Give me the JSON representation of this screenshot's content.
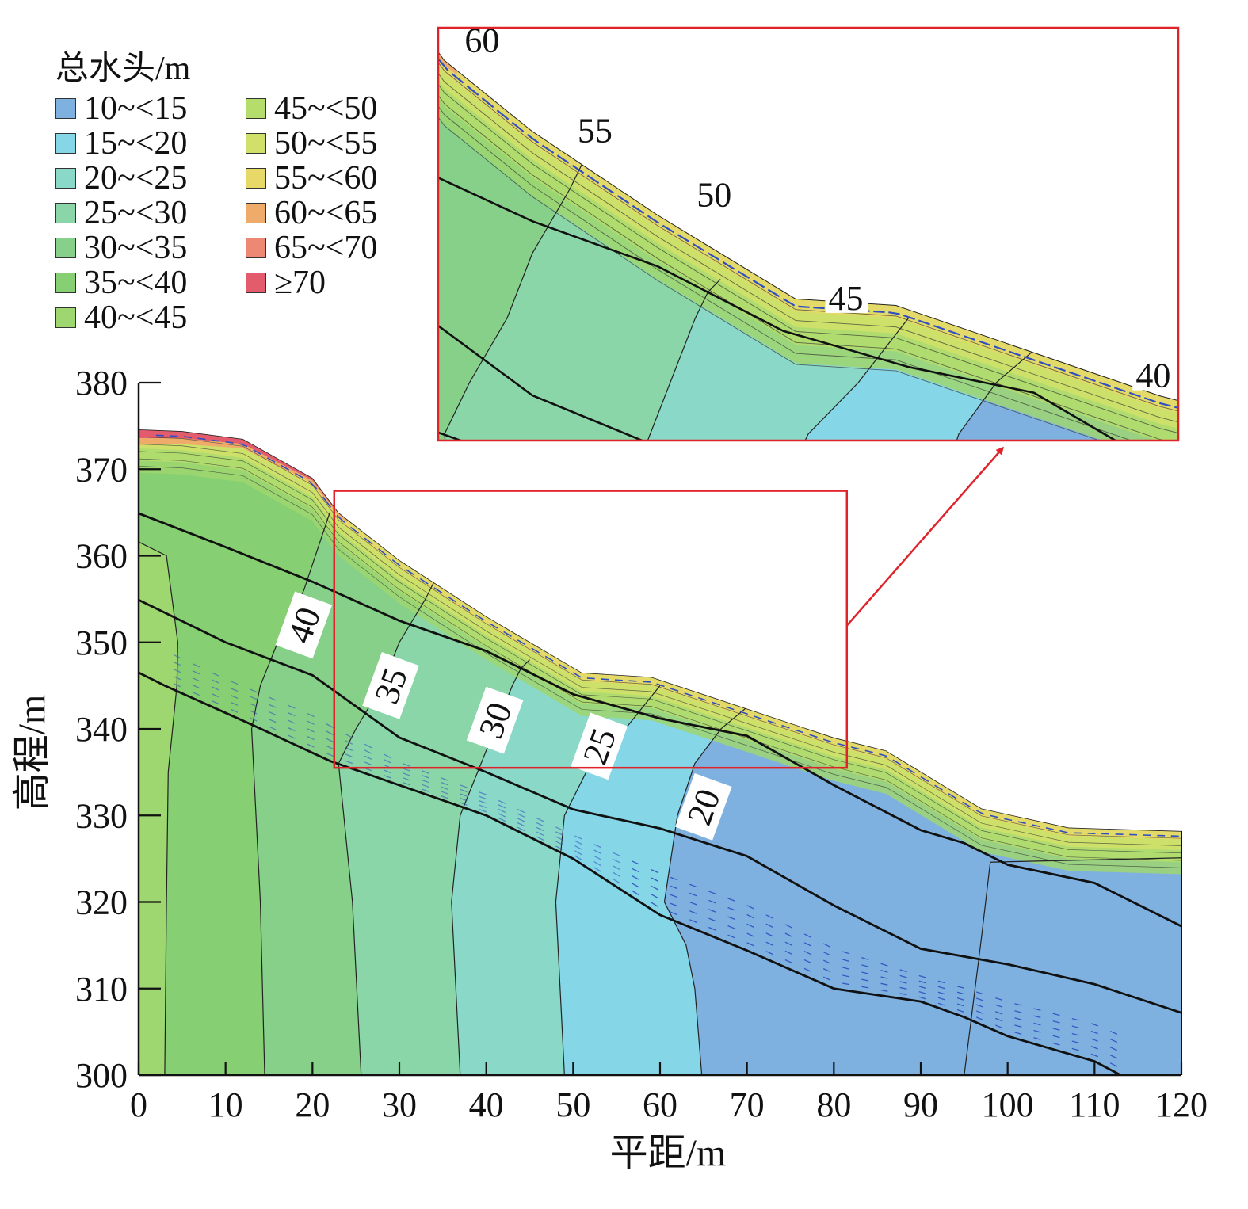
{
  "legend": {
    "title": "总水头/m",
    "items": [
      {
        "label": "10~<15",
        "color": "#7fb1e0"
      },
      {
        "label": "15~<20",
        "color": "#85d6e6"
      },
      {
        "label": "20~<25",
        "color": "#8ad8c8"
      },
      {
        "label": "25~<30",
        "color": "#8ad6a8"
      },
      {
        "label": "30~<35",
        "color": "#87d08a"
      },
      {
        "label": "35~<40",
        "color": "#86cf73"
      },
      {
        "label": "40~<45",
        "color": "#9ed670"
      },
      {
        "label": "45~<50",
        "color": "#b4dd6c"
      },
      {
        "label": "50~<55",
        "color": "#d1e06a"
      },
      {
        "label": "55~<60",
        "color": "#e8d868"
      },
      {
        "label": "60~<65",
        "color": "#eeab6a"
      },
      {
        "label": "65~<70",
        "color": "#ee8874"
      },
      {
        "label": "≥70",
        "color": "#e25c6e"
      }
    ]
  },
  "chart_data": {
    "type": "heatmap",
    "xlabel": "平距/m",
    "ylabel": "高程/m",
    "xlim": [
      0,
      120
    ],
    "ylim": [
      300,
      380
    ],
    "xticks": [
      "0",
      "10",
      "20",
      "30",
      "40",
      "50",
      "60",
      "70",
      "80",
      "90",
      "100",
      "110",
      "120"
    ],
    "yticks": [
      "300",
      "310",
      "320",
      "330",
      "340",
      "350",
      "360",
      "370",
      "380"
    ],
    "slope_surface": [
      [
        0,
        374.6
      ],
      [
        5,
        374.4
      ],
      [
        12,
        373.5
      ],
      [
        20,
        369
      ],
      [
        23,
        365
      ],
      [
        30,
        359.5
      ],
      [
        40,
        353
      ],
      [
        51,
        346.5
      ],
      [
        59,
        346
      ],
      [
        80,
        339
      ],
      [
        86,
        337.5
      ],
      [
        97,
        330.8
      ],
      [
        107,
        328.6
      ],
      [
        120,
        328.2
      ]
    ],
    "layer_boundaries": [
      [
        [
          0,
          364.9
        ],
        [
          10,
          361
        ],
        [
          20,
          357
        ],
        [
          30,
          352.5
        ],
        [
          40,
          349
        ],
        [
          50,
          344
        ],
        [
          60,
          341.2
        ],
        [
          70,
          339.2
        ],
        [
          80,
          333.5
        ],
        [
          90,
          328.3
        ],
        [
          95,
          326.8
        ],
        [
          100,
          324.3
        ],
        [
          110,
          322.2
        ],
        [
          120,
          317.2
        ]
      ],
      [
        [
          0,
          354.9
        ],
        [
          10,
          350
        ],
        [
          20,
          346.2
        ],
        [
          30,
          339
        ],
        [
          40,
          335
        ],
        [
          50,
          330.7
        ],
        [
          60,
          328.5
        ],
        [
          70,
          325.3
        ],
        [
          80,
          319.6
        ],
        [
          90,
          314.6
        ],
        [
          100,
          312.8
        ],
        [
          110,
          310.5
        ],
        [
          120,
          307.2
        ]
      ],
      [
        [
          0,
          346.5
        ],
        [
          3,
          345
        ],
        [
          13,
          340.5
        ],
        [
          22,
          336.3
        ],
        [
          30,
          333.5
        ],
        [
          40,
          330
        ],
        [
          50,
          325
        ],
        [
          60,
          318.5
        ],
        [
          70,
          314.4
        ],
        [
          80,
          310
        ],
        [
          90,
          308.5
        ],
        [
          95,
          306.7
        ],
        [
          100,
          304.5
        ],
        [
          110,
          301.6
        ],
        [
          113,
          300
        ]
      ]
    ],
    "head_zones": [
      {
        "range": "40~<45",
        "right_boundary": [
          [
            3,
            300
          ],
          [
            3.2,
            320
          ],
          [
            3.4,
            335
          ],
          [
            4.4,
            345
          ],
          [
            4.5,
            350
          ],
          [
            3.2,
            360
          ],
          [
            0,
            361.6
          ]
        ]
      },
      {
        "range": "35~<40",
        "right_boundary": [
          [
            14.5,
            300
          ],
          [
            14,
            320
          ],
          [
            13,
            340
          ],
          [
            14,
            345
          ],
          [
            16,
            350
          ],
          [
            19,
            356
          ],
          [
            21,
            362
          ],
          [
            22,
            365
          ]
        ]
      },
      {
        "range": "30~<35",
        "right_boundary": [
          [
            25.6,
            300
          ],
          [
            24.6,
            320
          ],
          [
            23,
            336
          ],
          [
            25,
            340
          ],
          [
            28,
            345
          ],
          [
            30,
            350
          ],
          [
            33,
            355
          ],
          [
            34,
            357
          ]
        ]
      },
      {
        "range": "25~<30",
        "right_boundary": [
          [
            37,
            300
          ],
          [
            36,
            320
          ],
          [
            37,
            330
          ],
          [
            39,
            335
          ],
          [
            41,
            340
          ],
          [
            43,
            345
          ],
          [
            44,
            347
          ],
          [
            45,
            348
          ]
        ]
      },
      {
        "range": "20~<25",
        "right_boundary": [
          [
            49,
            300
          ],
          [
            48,
            320
          ],
          [
            49,
            330
          ],
          [
            52,
            336
          ],
          [
            56,
            340
          ],
          [
            60,
            345
          ]
        ]
      },
      {
        "range": "15~<20",
        "right_boundary": [
          [
            64.8,
            300
          ],
          [
            64,
            310
          ],
          [
            63,
            315
          ],
          [
            60.5,
            320
          ],
          [
            62,
            330
          ],
          [
            64,
            336
          ],
          [
            67,
            340
          ],
          [
            70,
            342.5
          ]
        ]
      },
      {
        "range": "10~<15",
        "right_boundary": [
          [
            95,
            300
          ],
          [
            97,
            316
          ],
          [
            98,
            324.6
          ],
          [
            120,
            325.1
          ]
        ]
      }
    ],
    "contour_labels": [
      {
        "text": "40",
        "x": 19,
        "y": 352
      },
      {
        "text": "35",
        "x": 29,
        "y": 345
      },
      {
        "text": "30",
        "x": 41,
        "y": 341
      },
      {
        "text": "25",
        "x": 53,
        "y": 338
      },
      {
        "text": "20",
        "x": 65,
        "y": 331
      }
    ],
    "zoom_window": {
      "xlim": [
        22.5,
        81.5
      ],
      "ylim": [
        335.5,
        367.5
      ]
    },
    "inset_labels": [
      {
        "text": "60",
        "x": 26,
        "y": 366.5
      },
      {
        "text": "55",
        "x": 35,
        "y": 359.5
      },
      {
        "text": "50",
        "x": 44.5,
        "y": 354.5
      },
      {
        "text": "45",
        "x": 55,
        "y": 346.5
      },
      {
        "text": "40",
        "x": 79.5,
        "y": 340.5
      }
    ]
  }
}
